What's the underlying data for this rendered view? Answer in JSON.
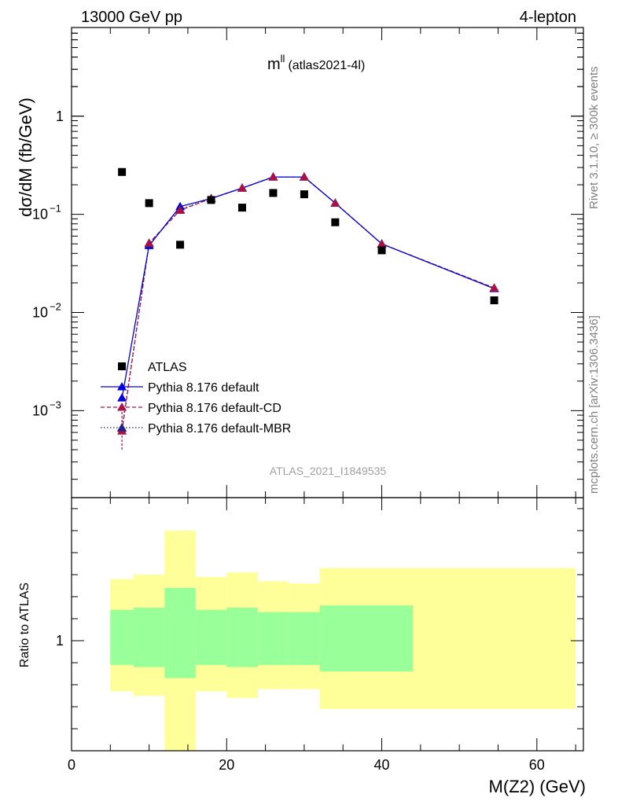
{
  "header": {
    "left": "13000 GeV pp",
    "right": "4-lepton"
  },
  "side_labels": {
    "rivet": "Rivet 3.1.10, ≥ 300k events",
    "site": "mcplots.cern.ch [arXiv:1306.3436]"
  },
  "chart_data": [
    {
      "type": "scatter",
      "title_main": "m",
      "title_sup": "ll",
      "title_sub": "(atlas2021-4l)",
      "ylabel": "dσ/dM (fb/GeV)",
      "yscale": "log",
      "ylim": [
        0.00013,
        8
      ],
      "xlim": [
        0,
        66
      ],
      "watermark": "ATLAS_2021_I1849535",
      "yticks": [
        {
          "value": 1,
          "base": "1",
          "exp": ""
        },
        {
          "value": 0.1,
          "base": "10",
          "exp": "−1"
        },
        {
          "value": 0.01,
          "base": "10",
          "exp": "−2"
        },
        {
          "value": 0.001,
          "base": "10",
          "exp": "−3"
        }
      ],
      "legend": [
        {
          "label": "ATLAS",
          "color": "#000000",
          "style": "square"
        },
        {
          "label": "Pythia 8.176 default",
          "color": "#0000dd",
          "style": "solid"
        },
        {
          "label": "Pythia 8.176 default-CD",
          "color": "#aa1144",
          "style": "dashed"
        },
        {
          "label": "Pythia 8.176 default-MBR",
          "color": "#222288",
          "style": "dotted"
        }
      ],
      "series": [
        {
          "name": "ATLAS",
          "color": "#000000",
          "x": [
            6.5,
            10,
            14,
            18,
            22,
            26,
            30,
            34,
            40,
            54.5
          ],
          "y": [
            0.27,
            0.13,
            0.049,
            0.14,
            0.117,
            0.165,
            0.16,
            0.083,
            0.043,
            0.0133
          ]
        },
        {
          "name": "Pythia 8.176 default",
          "color": "#0000dd",
          "x": [
            6.5,
            10,
            14,
            18,
            22,
            26,
            30,
            34,
            40,
            54.5
          ],
          "y": [
            0.00135,
            0.048,
            0.12,
            0.145,
            0.185,
            0.24,
            0.24,
            0.13,
            0.05,
            0.0175
          ]
        },
        {
          "name": "Pythia 8.176 default-CD",
          "color": "#aa1144",
          "x": [
            6.5,
            10,
            14,
            18,
            22,
            26,
            30,
            34,
            40,
            54.5
          ],
          "y": [
            0.00062,
            0.051,
            0.11,
            0.145,
            0.185,
            0.24,
            0.24,
            0.13,
            0.05,
            0.0178
          ]
        },
        {
          "name": "Pythia 8.176 default-MBR",
          "color": "#222288",
          "x": [
            6.5,
            10,
            14,
            18,
            22,
            26,
            30,
            34,
            40,
            54.5
          ],
          "y": [
            0.00066,
            0.05,
            0.112,
            0.145,
            0.185,
            0.24,
            0.24,
            0.13,
            0.05,
            0.0177
          ]
        }
      ]
    },
    {
      "type": "area",
      "ylabel": "Ratio to ATLAS",
      "xlabel": "M(Z2)  (GeV)",
      "xlim": [
        0,
        66
      ],
      "ylim": [
        0.5,
        1.65
      ],
      "xticks": [
        0,
        20,
        40,
        60
      ],
      "yticks": [
        1
      ],
      "inner_band_color": "#99ff99",
      "outer_band_color": "#ffff99",
      "bins": [
        {
          "x0": 5,
          "x1": 8,
          "inner": [
            0.89,
            1.14
          ],
          "outer": [
            0.77,
            1.28
          ]
        },
        {
          "x0": 8,
          "x1": 12,
          "inner": [
            0.88,
            1.15
          ],
          "outer": [
            0.75,
            1.3
          ]
        },
        {
          "x0": 12,
          "x1": 16,
          "inner": [
            0.83,
            1.24
          ],
          "outer": [
            0.5,
            1.5
          ]
        },
        {
          "x0": 16,
          "x1": 20,
          "inner": [
            0.89,
            1.14
          ],
          "outer": [
            0.77,
            1.29
          ]
        },
        {
          "x0": 20,
          "x1": 24,
          "inner": [
            0.88,
            1.15
          ],
          "outer": [
            0.74,
            1.31
          ]
        },
        {
          "x0": 24,
          "x1": 28,
          "inner": [
            0.89,
            1.13
          ],
          "outer": [
            0.78,
            1.27
          ]
        },
        {
          "x0": 28,
          "x1": 32,
          "inner": [
            0.89,
            1.13
          ],
          "outer": [
            0.78,
            1.26
          ]
        },
        {
          "x0": 32,
          "x1": 44,
          "inner": [
            0.86,
            1.16
          ],
          "outer": [
            0.69,
            1.33
          ]
        },
        {
          "x0": 44,
          "x1": 65,
          "inner": null,
          "outer": [
            0.69,
            1.33
          ]
        }
      ]
    }
  ]
}
